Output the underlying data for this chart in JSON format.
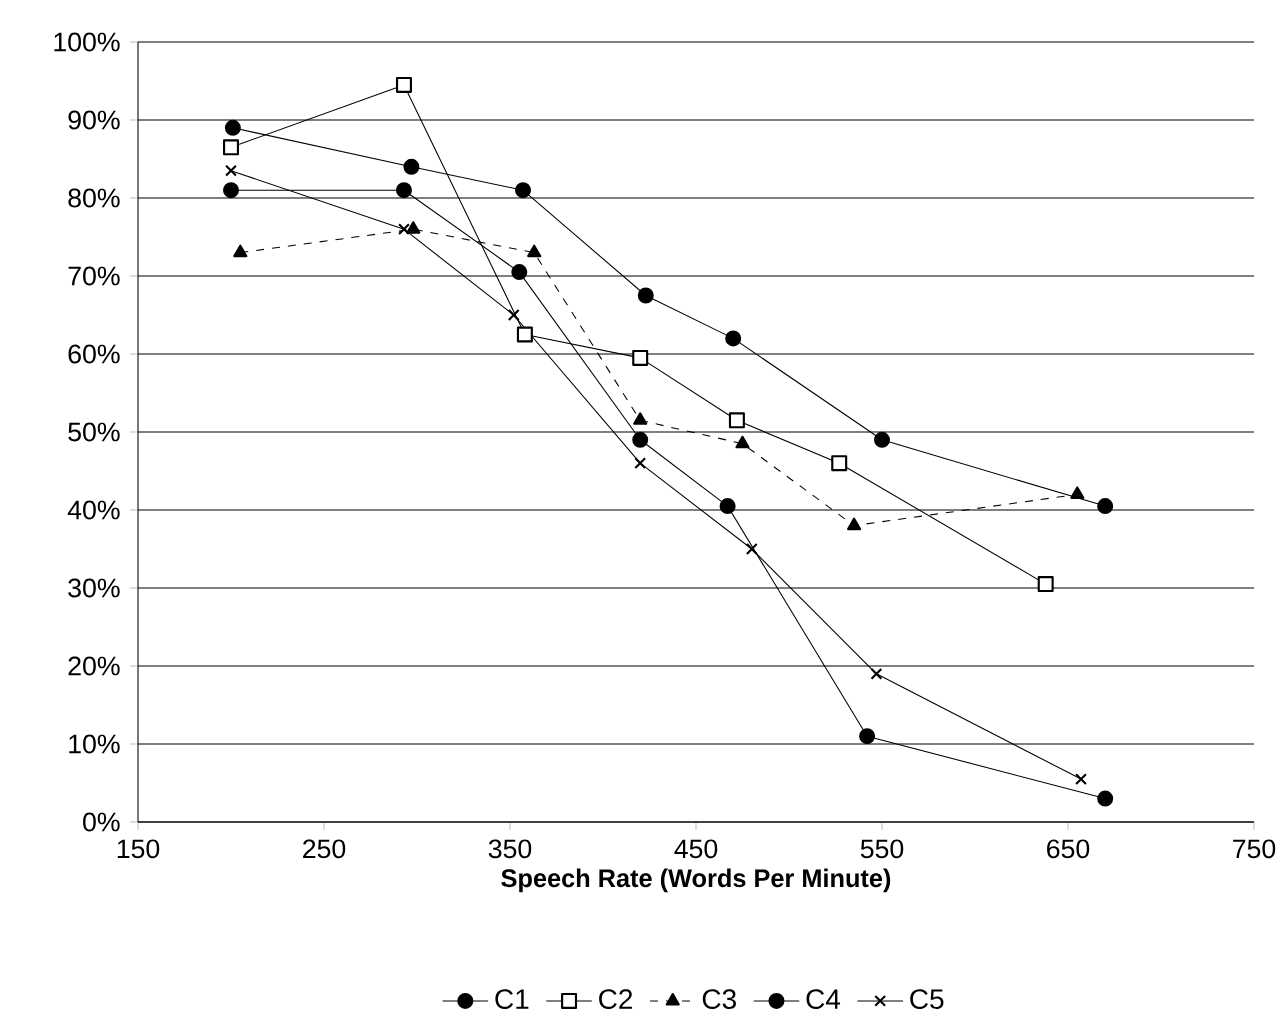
{
  "chart_data": {
    "type": "line",
    "xlabel": "Speech Rate (Words Per Minute)",
    "xlim": [
      150,
      750
    ],
    "xticks": [
      150,
      250,
      350,
      450,
      550,
      650,
      750
    ],
    "ylim": [
      0,
      100
    ],
    "yticks": [
      {
        "value": 0,
        "label": "0%"
      },
      {
        "value": 10,
        "label": "10%"
      },
      {
        "value": 20,
        "label": "20%"
      },
      {
        "value": 30,
        "label": "30%"
      },
      {
        "value": 40,
        "label": "40%"
      },
      {
        "value": 50,
        "label": "50%"
      },
      {
        "value": 60,
        "label": "60%"
      },
      {
        "value": 70,
        "label": "70%"
      },
      {
        "value": 80,
        "label": "80%"
      },
      {
        "value": 90,
        "label": "90%"
      },
      {
        "value": 100,
        "label": "100%"
      }
    ],
    "grid": "y",
    "legend": "bottom",
    "series": [
      {
        "name": "C1",
        "color": "#000000",
        "marker": "circle",
        "line_style": "solid",
        "x": [
          201,
          297,
          357,
          423,
          470,
          550,
          670
        ],
        "values": [
          89,
          84,
          81,
          67.5,
          62,
          49,
          40.5
        ]
      },
      {
        "name": "C2",
        "color": "#000000",
        "marker": "square",
        "line_style": "solid",
        "x": [
          200,
          293,
          358,
          420,
          472,
          527,
          638
        ],
        "values": [
          86.5,
          94.5,
          62.5,
          59.5,
          51.5,
          46,
          30.5
        ]
      },
      {
        "name": "C3",
        "color": "#000000",
        "marker": "triangle",
        "line_style": "dashed",
        "x": [
          205,
          298,
          363,
          420,
          475,
          535,
          655
        ],
        "values": [
          73,
          76,
          73,
          51.5,
          48.5,
          38,
          42
        ]
      },
      {
        "name": "C4",
        "color": "#000000",
        "marker": "circle",
        "line_style": "solid",
        "x": [
          200,
          293,
          355,
          420,
          467,
          542,
          670
        ],
        "values": [
          81,
          81,
          70.5,
          49,
          40.5,
          11,
          3
        ]
      },
      {
        "name": "C5",
        "color": "#000000",
        "marker": "cross",
        "line_style": "solid",
        "x": [
          200,
          293,
          352,
          420,
          480,
          547,
          657
        ],
        "values": [
          83.5,
          76,
          65,
          46,
          35,
          19,
          5.5
        ]
      }
    ]
  }
}
